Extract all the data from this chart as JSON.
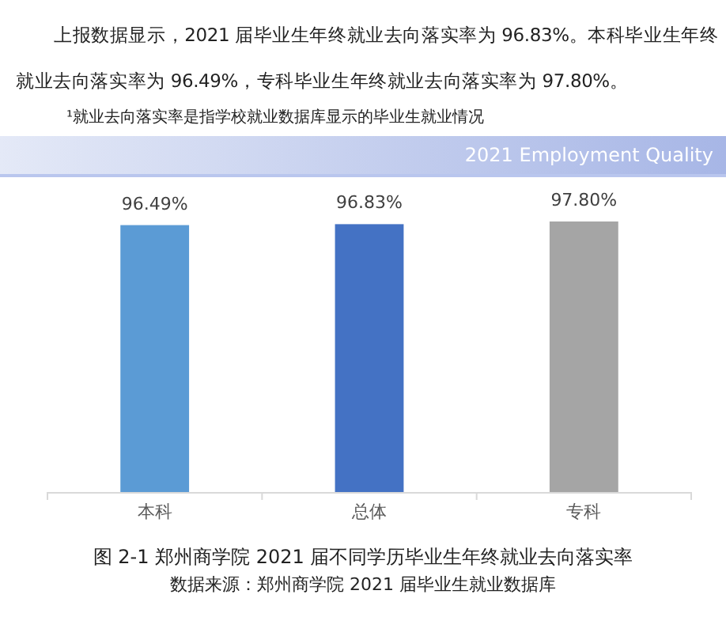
{
  "chart_data": {
    "type": "bar",
    "title": "图 2-1 郑州商学院 2021 届不同学历毕业生年终就业去向落实率",
    "categories": [
      "本科",
      "总体",
      "专科"
    ],
    "values": [
      96.49,
      96.83,
      97.8
    ],
    "colors": [
      "#5b9bd5",
      "#4472c4",
      "#a5a5a5"
    ],
    "value_labels": [
      "96.49%",
      "96.83%",
      "97.80%"
    ],
    "annotations": [
      "上报数据显示，2021 届毕业生年终就业去向落实率为 96.83%。本科毕业生年终就业去向落实率为 96.49%，专科毕业生年终就业去向落实率为 97.80%。",
      "¹就业去向落实率是指学校就业数据库显示的毕业生就业情况",
      "2021 Employment Quality",
      "数据来源：郑州商学院 2021 届毕业生就业数据库"
    ]
  }
}
